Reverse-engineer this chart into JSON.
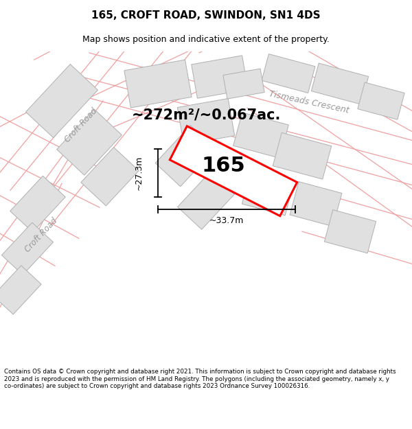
{
  "title": "165, CROFT ROAD, SWINDON, SN1 4DS",
  "subtitle": "Map shows position and indicative extent of the property.",
  "area_text": "~272m²/~0.067ac.",
  "number_label": "165",
  "dim_width": "~33.7m",
  "dim_height": "~27.3m",
  "footer": "Contains OS data © Crown copyright and database right 2021. This information is subject to Crown copyright and database rights 2023 and is reproduced with the permission of HM Land Registry. The polygons (including the associated geometry, namely x, y co-ordinates) are subject to Crown copyright and database rights 2023 Ordnance Survey 100026316.",
  "map_bg": "#ffffff",
  "building_fill": "#e0e0e0",
  "building_edge": "#b0b0b0",
  "road_line_color": "#f0a0a0",
  "highlight_color": "#ff0000",
  "label_color": "#aaaaaa",
  "road_label_color": "#999999",
  "road_label_1": "Croft Road",
  "road_label_2": "Tismeads Crescent",
  "title_fontsize": 11,
  "subtitle_fontsize": 9,
  "area_fontsize": 15,
  "number_fontsize": 22,
  "dim_fontsize": 9,
  "footer_fontsize": 6.3
}
